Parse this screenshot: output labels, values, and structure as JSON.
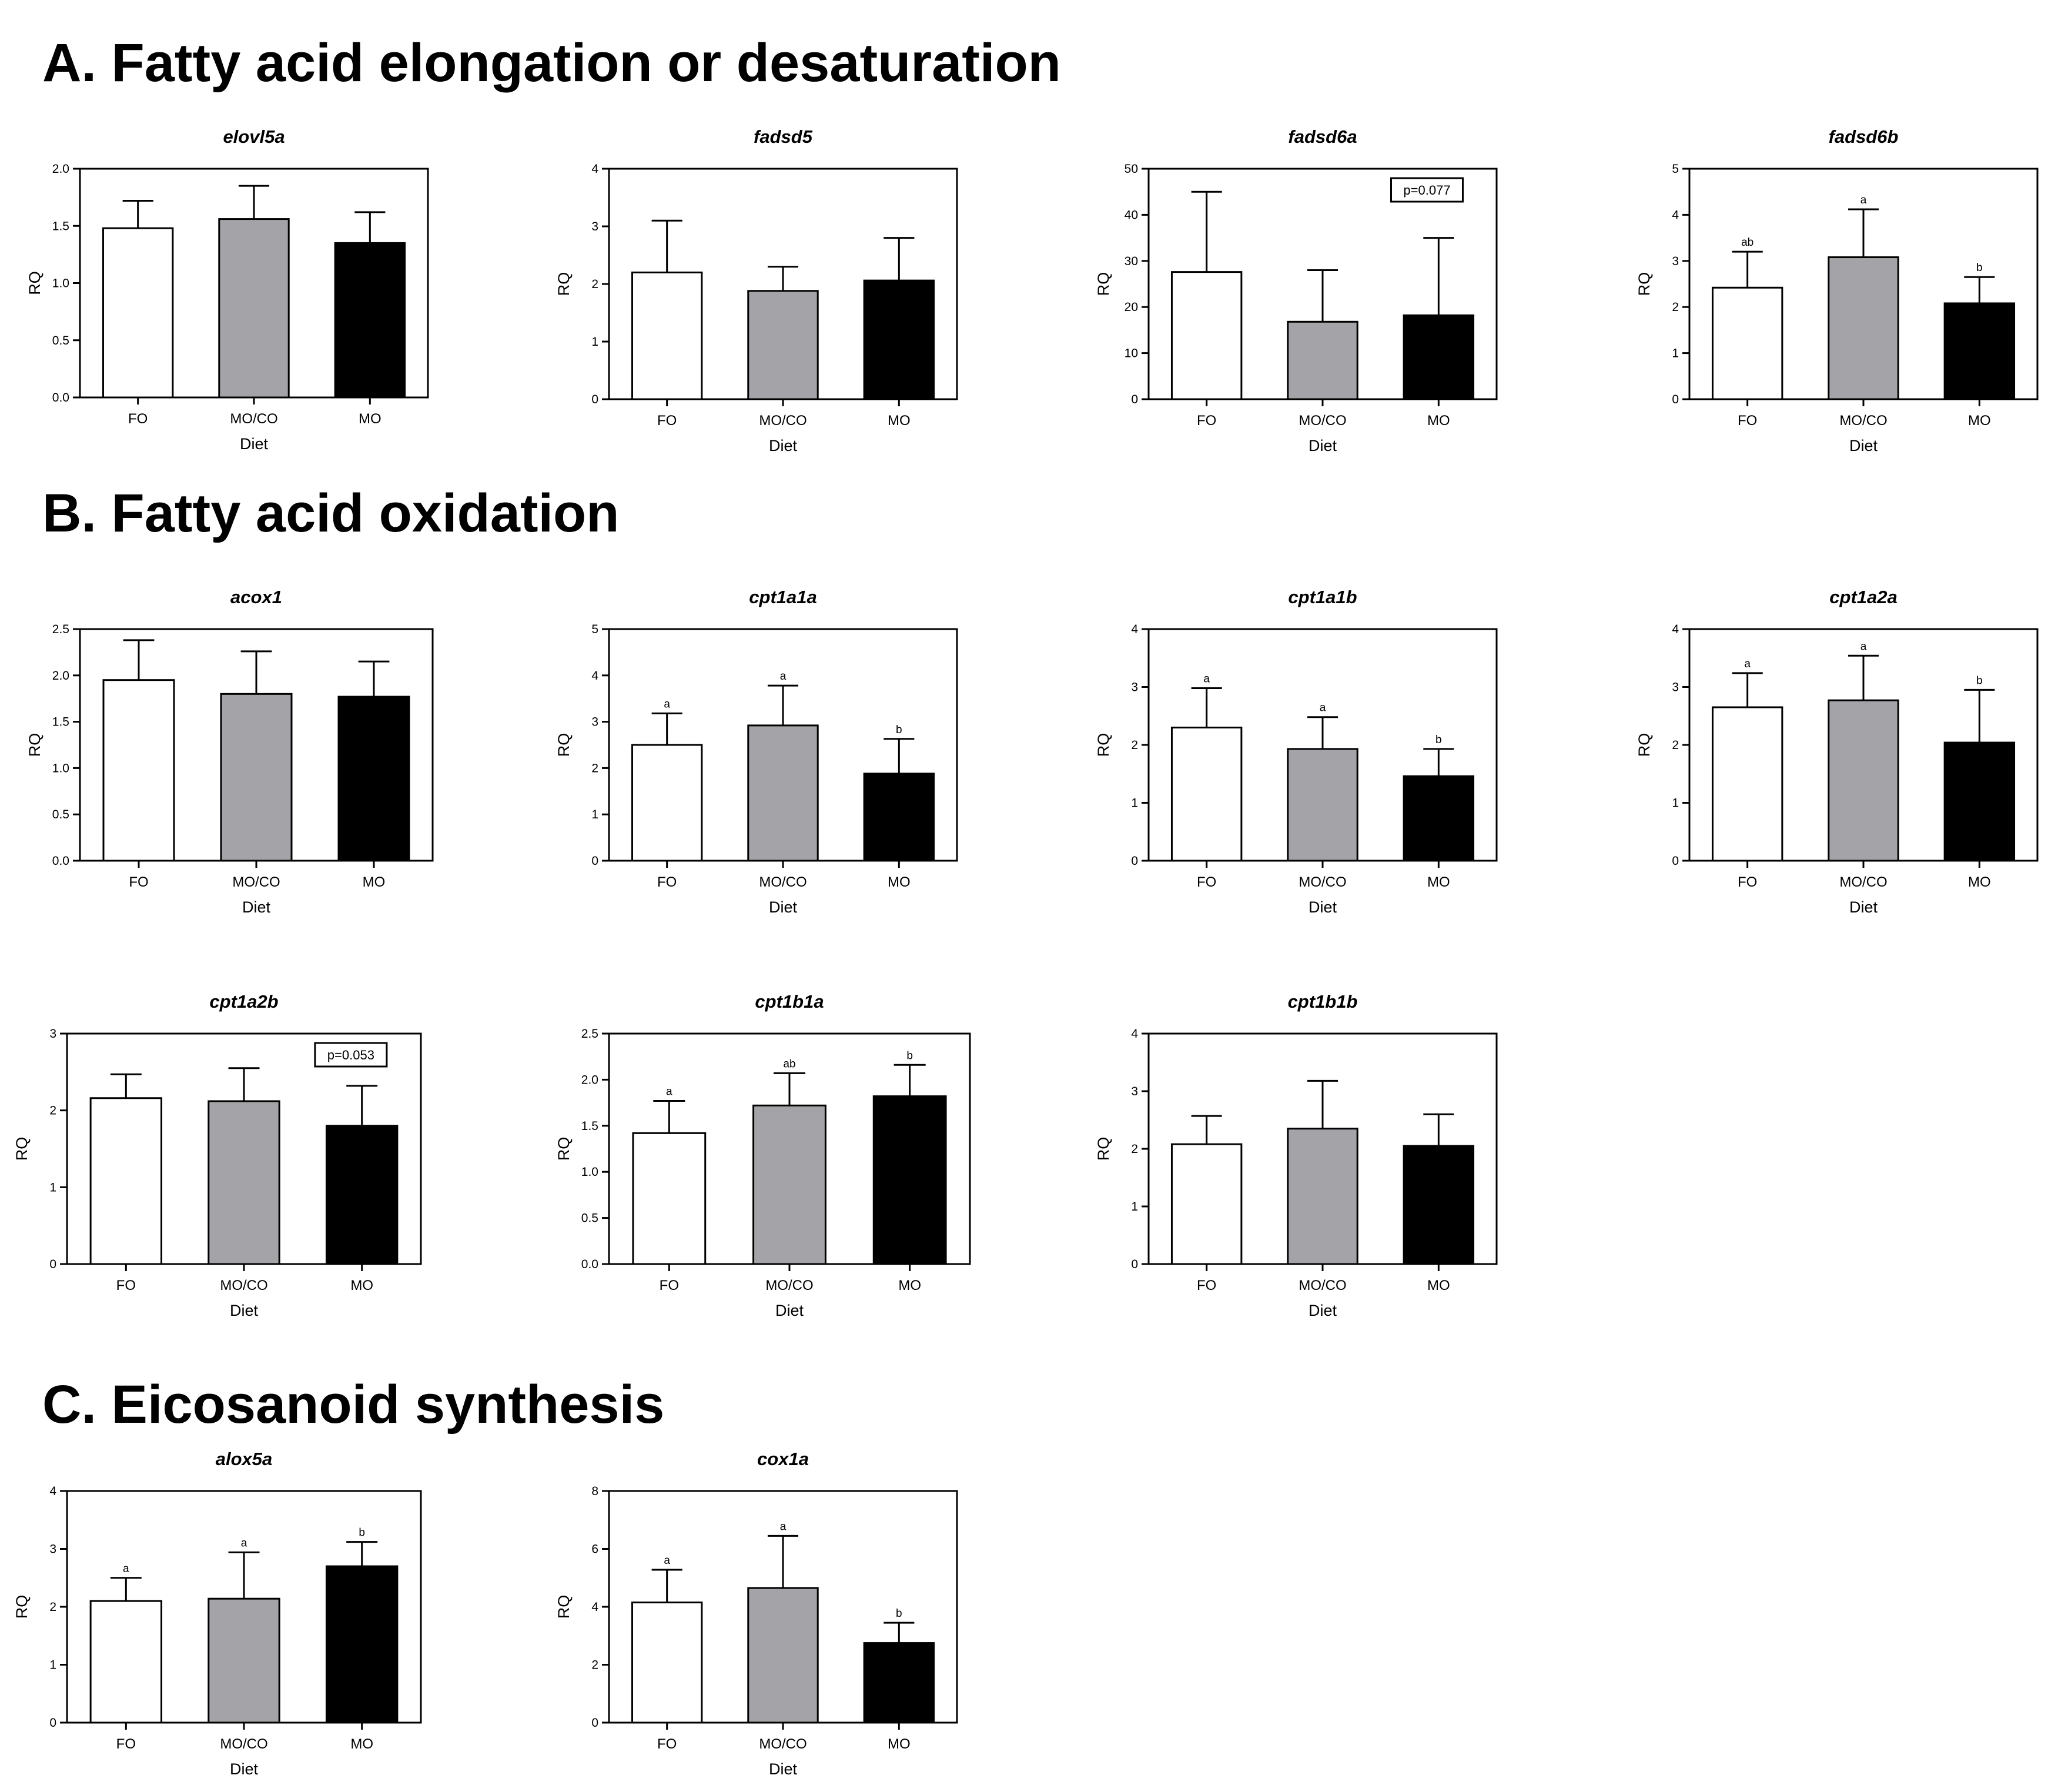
{
  "sections": [
    {
      "id": "A",
      "title": "A. Fatty acid elongation or desaturation"
    },
    {
      "id": "B",
      "title": "B. Fatty acid oxidation"
    },
    {
      "id": "C",
      "title": "C. Eicosanoid synthesis"
    }
  ],
  "colors": {
    "FO": "#ffffff",
    "MO/CO": "#a4a4a8",
    "MO": "#000000"
  },
  "chart_data": [
    {
      "type": "bar",
      "section": "A",
      "title": "elovl5a",
      "categories": [
        "FO",
        "MO/CO",
        "MO"
      ],
      "values": [
        1.48,
        1.56,
        1.35
      ],
      "errors": [
        1.72,
        1.85,
        1.62
      ],
      "letters": [
        "",
        "",
        ""
      ],
      "pvalue": "",
      "ylim": [
        0,
        2.0
      ],
      "yticks": [
        "0.0",
        "0.5",
        "1.0",
        "1.5",
        "2.0"
      ],
      "xlabel": "Diet",
      "ylabel": "RQ"
    },
    {
      "type": "bar",
      "section": "A",
      "title": "fadsd5",
      "categories": [
        "FO",
        "MO/CO",
        "MO"
      ],
      "values": [
        2.2,
        1.88,
        2.06
      ],
      "errors": [
        3.1,
        2.3,
        2.8
      ],
      "letters": [
        "",
        "",
        ""
      ],
      "pvalue": "",
      "ylim": [
        0,
        4
      ],
      "yticks": [
        "0",
        "1",
        "2",
        "3",
        "4"
      ],
      "xlabel": "Diet",
      "ylabel": "RQ"
    },
    {
      "type": "bar",
      "section": "A",
      "title": "fadsd6a",
      "categories": [
        "FO",
        "MO/CO",
        "MO"
      ],
      "values": [
        27.6,
        16.8,
        18.2
      ],
      "errors": [
        45,
        28,
        35
      ],
      "letters": [
        "",
        "",
        ""
      ],
      "pvalue": "p=0.077",
      "ylim": [
        0,
        50
      ],
      "yticks": [
        "0",
        "10",
        "20",
        "30",
        "40",
        "50"
      ],
      "xlabel": "Diet",
      "ylabel": "RQ"
    },
    {
      "type": "bar",
      "section": "A",
      "title": "fadsd6b",
      "categories": [
        "FO",
        "MO/CO",
        "MO"
      ],
      "values": [
        2.42,
        3.08,
        2.08
      ],
      "errors": [
        3.2,
        4.12,
        2.65
      ],
      "letters": [
        "ab",
        "a",
        "b"
      ],
      "pvalue": "",
      "ylim": [
        0,
        5
      ],
      "yticks": [
        "0",
        "1",
        "2",
        "3",
        "4",
        "5"
      ],
      "xlabel": "Diet",
      "ylabel": "RQ"
    },
    {
      "type": "bar",
      "section": "B",
      "title": "acox1",
      "categories": [
        "FO",
        "MO/CO",
        "MO"
      ],
      "values": [
        1.95,
        1.8,
        1.77
      ],
      "errors": [
        2.38,
        2.26,
        2.15
      ],
      "letters": [
        "",
        "",
        ""
      ],
      "pvalue": "",
      "ylim": [
        0,
        2.5
      ],
      "yticks": [
        "0.0",
        "0.5",
        "1.0",
        "1.5",
        "2.0",
        "2.5"
      ],
      "xlabel": "Diet",
      "ylabel": "RQ"
    },
    {
      "type": "bar",
      "section": "B",
      "title": "cpt1a1a",
      "categories": [
        "FO",
        "MO/CO",
        "MO"
      ],
      "values": [
        2.5,
        2.92,
        1.88
      ],
      "errors": [
        3.18,
        3.78,
        2.63
      ],
      "letters": [
        "a",
        "a",
        "b"
      ],
      "pvalue": "",
      "ylim": [
        0,
        5
      ],
      "yticks": [
        "0",
        "1",
        "2",
        "3",
        "4",
        "5"
      ],
      "xlabel": "Diet",
      "ylabel": "RQ"
    },
    {
      "type": "bar",
      "section": "B",
      "title": "cpt1a1b",
      "categories": [
        "FO",
        "MO/CO",
        "MO"
      ],
      "values": [
        2.3,
        1.93,
        1.46
      ],
      "errors": [
        2.98,
        2.48,
        1.93
      ],
      "letters": [
        "a",
        "a",
        "b"
      ],
      "pvalue": "",
      "ylim": [
        0,
        4
      ],
      "yticks": [
        "0",
        "1",
        "2",
        "3",
        "4"
      ],
      "xlabel": "Diet",
      "ylabel": "RQ"
    },
    {
      "type": "bar",
      "section": "B",
      "title": "cpt1a2a",
      "categories": [
        "FO",
        "MO/CO",
        "MO"
      ],
      "values": [
        2.65,
        2.77,
        2.04
      ],
      "errors": [
        3.24,
        3.54,
        2.95
      ],
      "letters": [
        "a",
        "a",
        "b"
      ],
      "pvalue": "",
      "ylim": [
        0,
        4
      ],
      "yticks": [
        "0",
        "1",
        "2",
        "3",
        "4"
      ],
      "xlabel": "Diet",
      "ylabel": "RQ"
    },
    {
      "type": "bar",
      "section": "B",
      "title": "cpt1a2b",
      "categories": [
        "FO",
        "MO/CO",
        "MO"
      ],
      "values": [
        2.16,
        2.12,
        1.8
      ],
      "errors": [
        2.47,
        2.55,
        2.32
      ],
      "letters": [
        "",
        "",
        ""
      ],
      "pvalue": "p=0.053",
      "ylim": [
        0,
        3
      ],
      "yticks": [
        "0",
        "1",
        "2",
        "3"
      ],
      "xlabel": "Diet",
      "ylabel": "RQ"
    },
    {
      "type": "bar",
      "section": "B",
      "title": "cpt1b1a",
      "categories": [
        "FO",
        "MO/CO",
        "MO"
      ],
      "values": [
        1.42,
        1.72,
        1.82
      ],
      "errors": [
        1.77,
        2.07,
        2.16
      ],
      "letters": [
        "a",
        "ab",
        "b"
      ],
      "pvalue": "",
      "ylim": [
        0,
        2.5
      ],
      "yticks": [
        "0.0",
        "0.5",
        "1.0",
        "1.5",
        "2.0",
        "2.5"
      ],
      "xlabel": "Diet",
      "ylabel": "RQ"
    },
    {
      "type": "bar",
      "section": "B",
      "title": "cpt1b1b",
      "categories": [
        "FO",
        "MO/CO",
        "MO"
      ],
      "values": [
        2.08,
        2.35,
        2.05
      ],
      "errors": [
        2.57,
        3.18,
        2.6
      ],
      "letters": [
        "",
        "",
        ""
      ],
      "pvalue": "",
      "ylim": [
        0,
        4
      ],
      "yticks": [
        "0",
        "1",
        "2",
        "3",
        "4"
      ],
      "xlabel": "Diet",
      "ylabel": "RQ"
    },
    {
      "type": "bar",
      "section": "C",
      "title": "alox5a",
      "categories": [
        "FO",
        "MO/CO",
        "MO"
      ],
      "values": [
        2.1,
        2.14,
        2.7
      ],
      "errors": [
        2.5,
        2.94,
        3.12
      ],
      "letters": [
        "a",
        "a",
        "b"
      ],
      "pvalue": "",
      "ylim": [
        0,
        4
      ],
      "yticks": [
        "0",
        "1",
        "2",
        "3",
        "4"
      ],
      "xlabel": "Diet",
      "ylabel": "RQ"
    },
    {
      "type": "bar",
      "section": "C",
      "title": "cox1a",
      "categories": [
        "FO",
        "MO/CO",
        "MO"
      ],
      "values": [
        4.15,
        4.65,
        2.75
      ],
      "errors": [
        5.28,
        6.45,
        3.45
      ],
      "letters": [
        "a",
        "a",
        "b"
      ],
      "pvalue": "",
      "ylim": [
        0,
        8
      ],
      "yticks": [
        "0",
        "2",
        "4",
        "6",
        "8"
      ],
      "xlabel": "Diet",
      "ylabel": "RQ"
    }
  ]
}
